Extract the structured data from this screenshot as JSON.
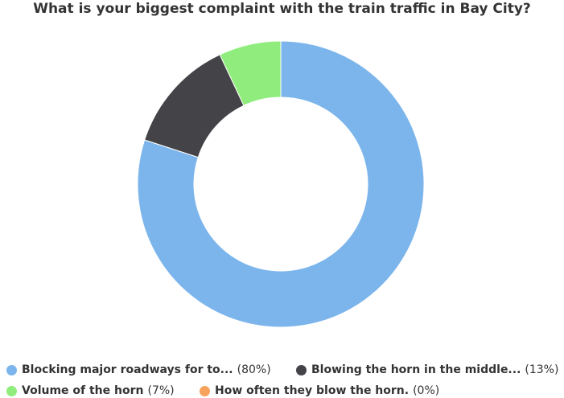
{
  "chart_data": {
    "type": "pie",
    "variant": "donut",
    "title": "What is your biggest complaint with the train traffic in Bay City?",
    "categories": [
      "Blocking major roadways for to...",
      "Blowing the horn in the middle...",
      "Volume of the horn",
      "How often they blow the horn."
    ],
    "values": [
      80,
      13,
      7,
      0
    ],
    "value_labels": [
      "(80%)",
      "(13%)",
      "(7%)",
      "(0%)"
    ],
    "colors": [
      "#7cb5ec",
      "#434348",
      "#90ed7d",
      "#f7a35c"
    ],
    "legend_position": "bottom"
  }
}
